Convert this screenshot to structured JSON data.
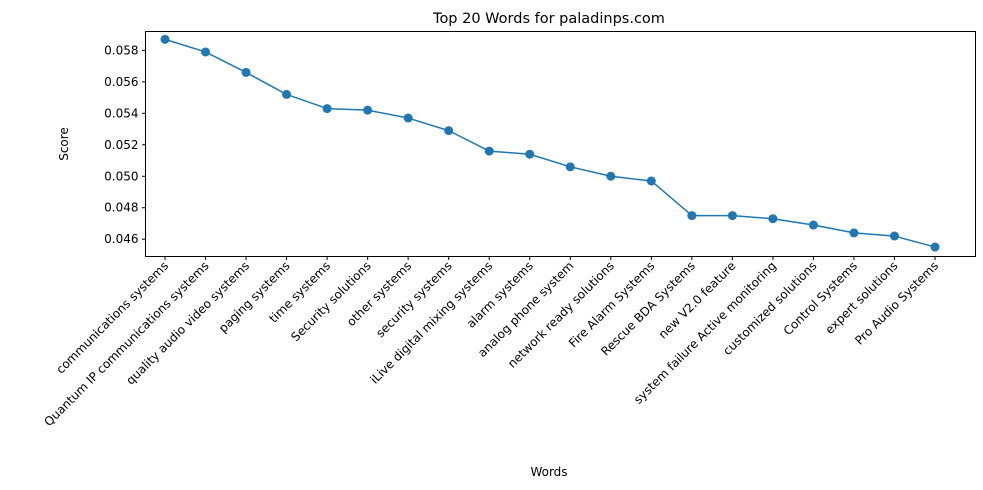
{
  "chart_data": {
    "type": "line",
    "title": "Top 20 Words for paladinps.com",
    "xlabel": "Words",
    "ylabel": "Score",
    "ylim": [
      0.0449,
      0.0592
    ],
    "yticks": [
      "0.046",
      "0.048",
      "0.050",
      "0.052",
      "0.054",
      "0.056",
      "0.058"
    ],
    "yticks_values": [
      0.046,
      0.048,
      0.05,
      0.052,
      0.054,
      0.056,
      0.058
    ],
    "categories": [
      "communications systems",
      "Quantum IP communications systems",
      "quality audio video systems",
      "paging systems",
      "time systems",
      "Security solutions",
      "other systems",
      "security systems",
      "iLive digital mixing systems",
      "alarm systems",
      "analog phone system",
      "network ready solutions",
      "Fire Alarm Systems",
      "Rescue BDA Systems",
      "new V2.0 feature",
      "system failure Active monitoring",
      "customized solutions",
      "Control Systems",
      "expert solutions",
      "Pro Audio Systems"
    ],
    "values": [
      0.0587,
      0.0579,
      0.0566,
      0.0552,
      0.0543,
      0.0542,
      0.0537,
      0.0529,
      0.0516,
      0.0514,
      0.0506,
      0.05,
      0.0497,
      0.0475,
      0.0475,
      0.0473,
      0.0469,
      0.0464,
      0.0462,
      0.0455
    ],
    "line_color": "#1f77b4",
    "marker": "circle",
    "grid": false,
    "legend": false
  }
}
